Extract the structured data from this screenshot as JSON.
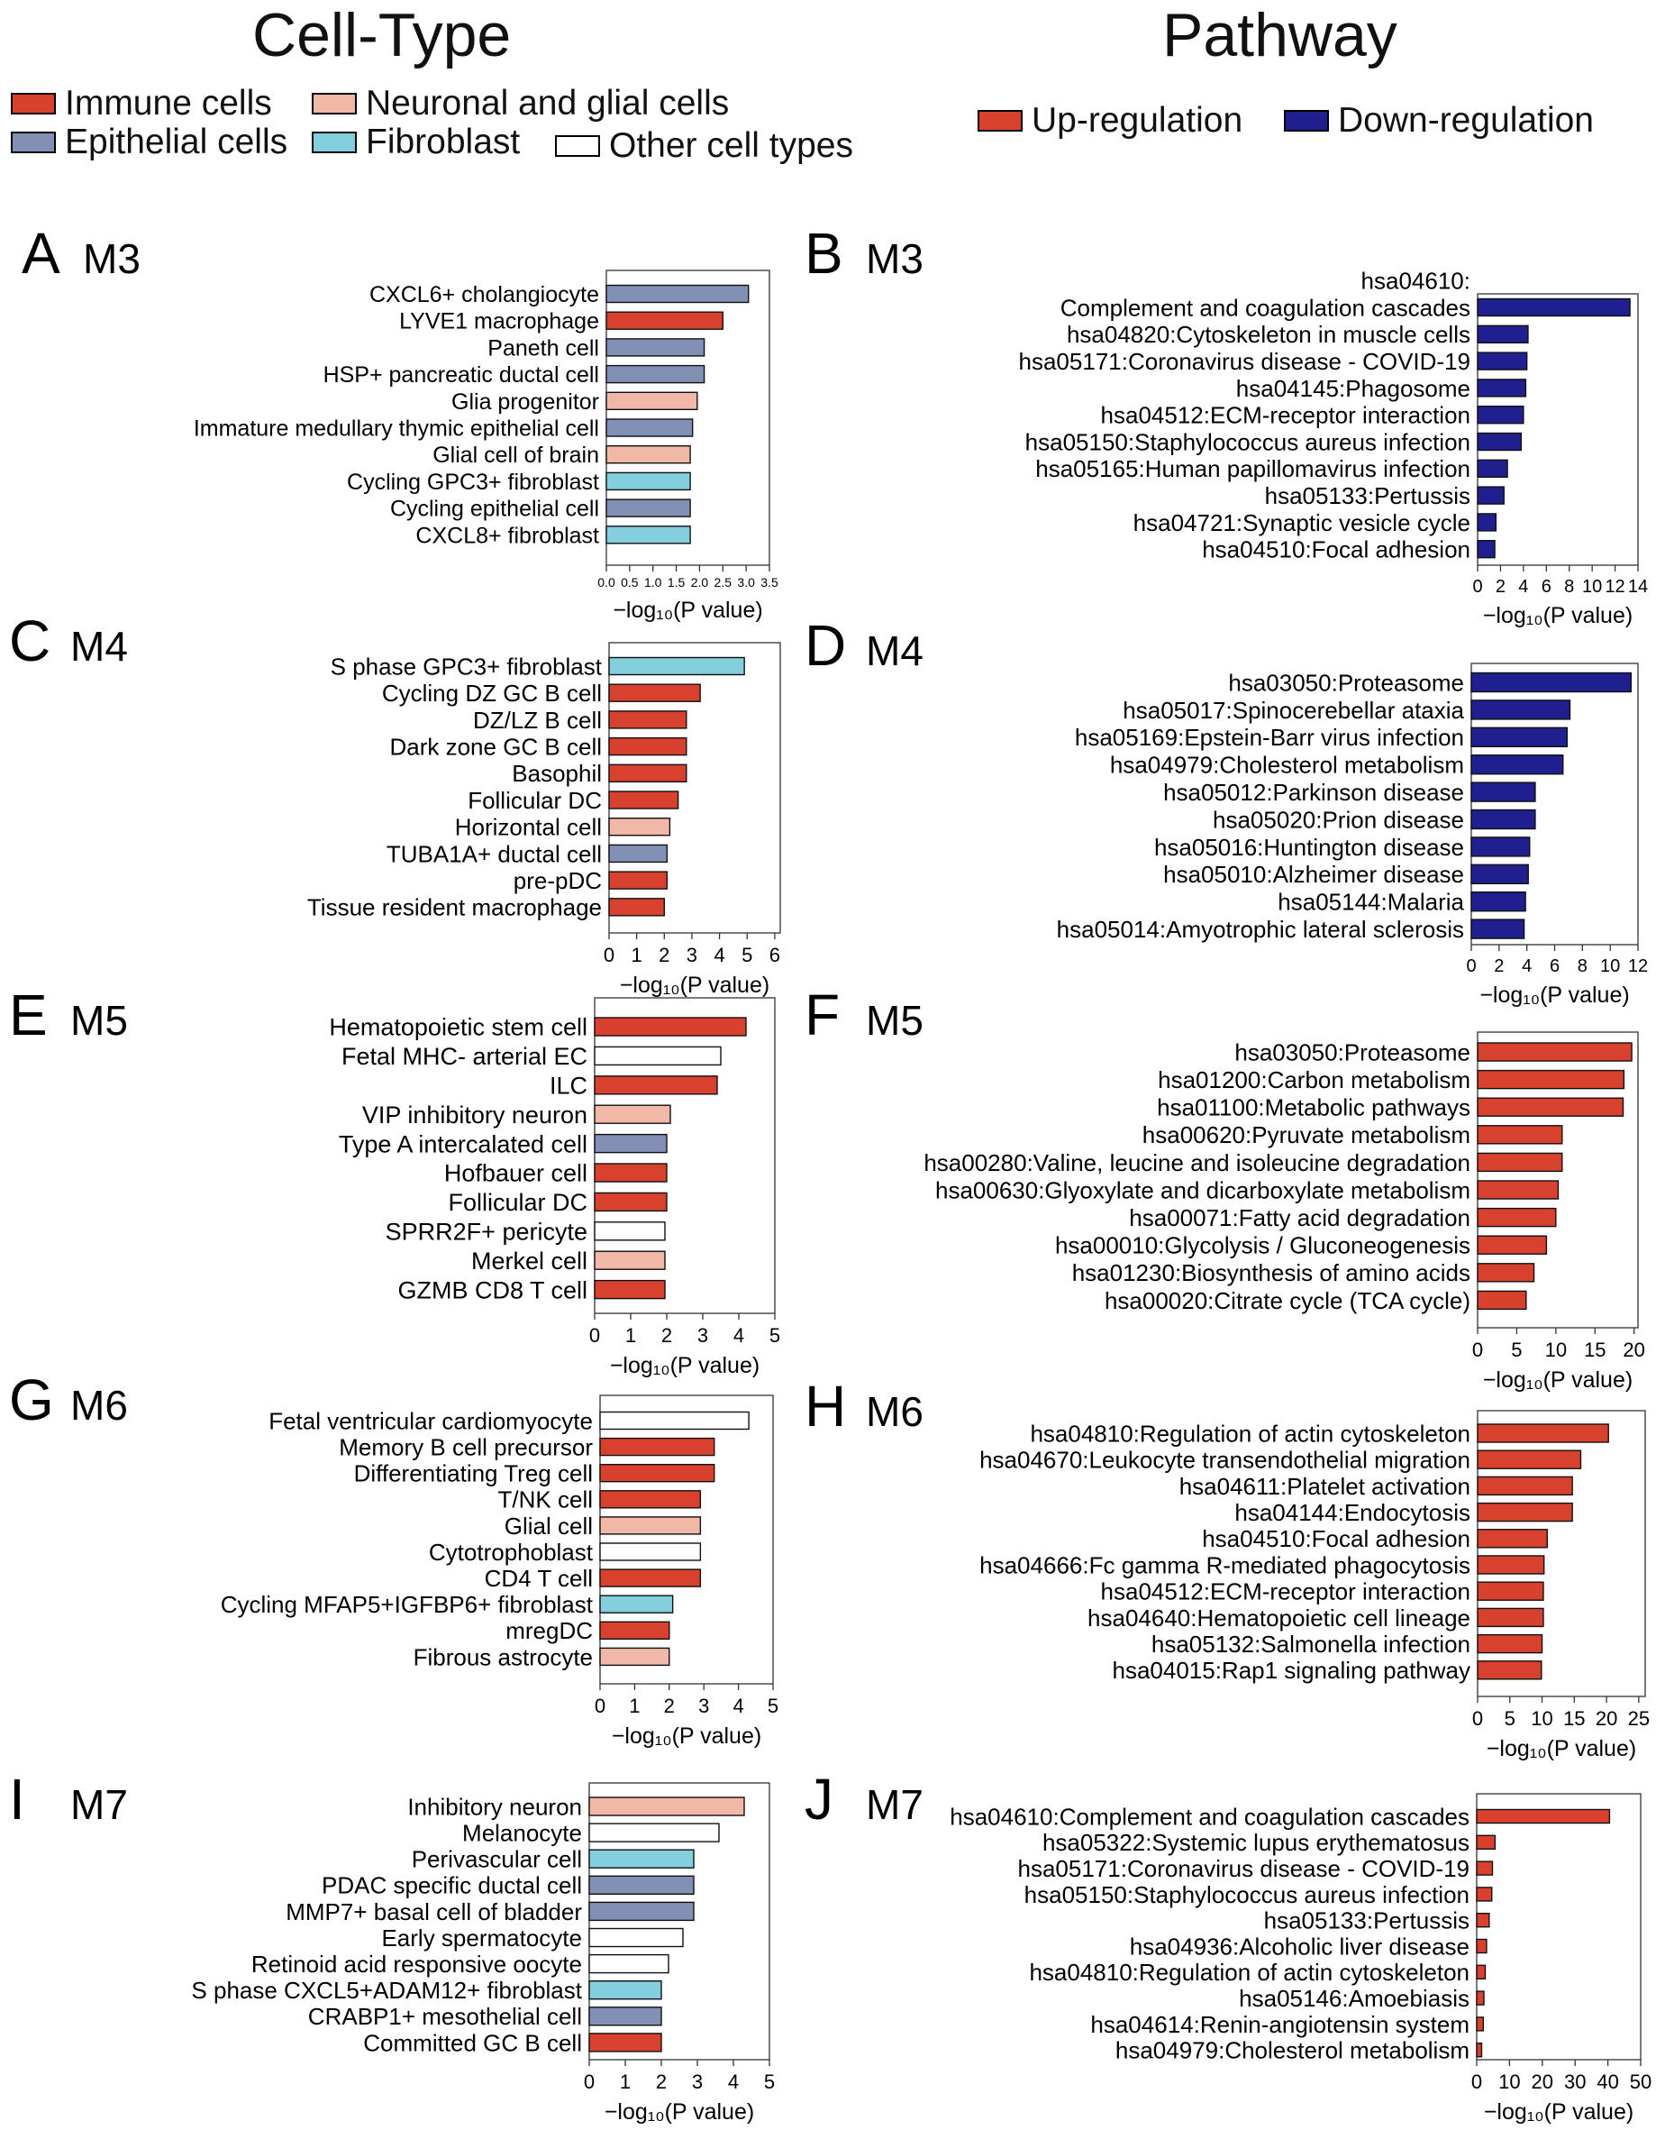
{
  "headers": {
    "left": "Cell-Type",
    "right": "Pathway"
  },
  "cell_legend": [
    {
      "label": "Immune cells",
      "color": "#d9412f"
    },
    {
      "label": "Neuronal and glial cells",
      "color": "#f1b8a7"
    },
    {
      "label": "Epithelial cells",
      "color": "#8290b6"
    },
    {
      "label": "Fibroblast",
      "color": "#83cfdd"
    },
    {
      "label": "Other cell types",
      "color": "#ffffff"
    }
  ],
  "pathway_legend": [
    {
      "label": "Up-regulation",
      "color": "#d9412f"
    },
    {
      "label": "Down-regulation",
      "color": "#1f1f8f"
    }
  ],
  "xlabel": "−log₁₀(P value)",
  "chart_data": [
    {
      "panel": "A",
      "module": "M3",
      "type": "bar",
      "orientation": "horizontal",
      "categories": [
        "CXCL6+ cholangiocyte",
        "LYVE1 macrophage",
        "Paneth cell",
        "HSP+ pancreatic ductal cell",
        "Glia progenitor",
        "Immature medullary thymic epithelial cell",
        "Glial cell of brain",
        "Cycling GPC3+ fibroblast",
        "Cycling epithelial cell",
        "CXCL8+ fibroblast"
      ],
      "values": [
        3.05,
        2.5,
        2.1,
        2.1,
        1.95,
        1.85,
        1.8,
        1.8,
        1.8,
        1.8
      ],
      "colors": [
        "#8290b6",
        "#d9412f",
        "#8290b6",
        "#8290b6",
        "#f1b8a7",
        "#8290b6",
        "#f1b8a7",
        "#83cfdd",
        "#8290b6",
        "#83cfdd"
      ],
      "xlim": [
        0,
        3.5
      ],
      "ticks": [
        0,
        0.5,
        1,
        1.5,
        2,
        2.5,
        3,
        3.5
      ],
      "tick_labels": [
        "0.0",
        "0.5",
        "1.0",
        "1.5",
        "2.0",
        "2.5",
        "3.0",
        "3.5"
      ],
      "xlabel": "−log₁₀(P value)"
    },
    {
      "panel": "B",
      "module": "M3",
      "type": "bar",
      "orientation": "horizontal",
      "categories": [
        "hsa04610:\nComplement and coagulation cascades",
        "hsa04820:Cytoskeleton in muscle cells",
        "hsa05171:Coronavirus disease - COVID-19",
        "hsa04145:Phagosome",
        "hsa04512:ECM-receptor interaction",
        "hsa05150:Staphylococcus aureus infection",
        "hsa05165:Human papillomavirus infection",
        "hsa05133:Pertussis",
        "hsa04721:Synaptic vesicle cycle",
        "hsa04510:Focal adhesion"
      ],
      "values": [
        13.3,
        4.4,
        4.3,
        4.2,
        4.0,
        3.8,
        2.6,
        2.3,
        1.6,
        1.5
      ],
      "colors": [
        "#1f1f8f",
        "#1f1f8f",
        "#1f1f8f",
        "#1f1f8f",
        "#1f1f8f",
        "#1f1f8f",
        "#1f1f8f",
        "#1f1f8f",
        "#1f1f8f",
        "#1f1f8f"
      ],
      "xlim": [
        0,
        14
      ],
      "ticks": [
        0,
        2,
        4,
        6,
        8,
        10,
        12,
        14
      ],
      "tick_labels": [
        "0",
        "2",
        "4",
        "6",
        "8",
        "10",
        "12",
        "14"
      ],
      "xlabel": "−log₁₀(P value)"
    },
    {
      "panel": "C",
      "module": "M4",
      "type": "bar",
      "orientation": "horizontal",
      "categories": [
        "S phase GPC3+ fibroblast",
        "Cycling DZ GC B cell",
        "DZ/LZ B cell",
        "Dark zone GC B cell",
        "Basophil",
        "Follicular DC",
        "Horizontal cell",
        "TUBA1A+ ductal cell",
        "pre-pDC",
        "Tissue resident macrophage"
      ],
      "values": [
        4.9,
        3.3,
        2.8,
        2.8,
        2.8,
        2.5,
        2.2,
        2.1,
        2.1,
        2.0
      ],
      "colors": [
        "#83cfdd",
        "#d9412f",
        "#d9412f",
        "#d9412f",
        "#d9412f",
        "#d9412f",
        "#f1b8a7",
        "#8290b6",
        "#d9412f",
        "#d9412f"
      ],
      "xlim": [
        0,
        6.2
      ],
      "ticks": [
        0,
        1,
        2,
        3,
        4,
        5,
        6
      ],
      "tick_labels": [
        "0",
        "1",
        "2",
        "3",
        "4",
        "5",
        "6"
      ],
      "xlabel": "−log₁₀(P value)"
    },
    {
      "panel": "D",
      "module": "M4",
      "type": "bar",
      "orientation": "horizontal",
      "categories": [
        "hsa03050:Proteasome",
        "hsa05017:Spinocerebellar ataxia",
        "hsa05169:Epstein-Barr virus infection",
        "hsa04979:Cholesterol metabolism",
        "hsa05012:Parkinson disease",
        "hsa05020:Prion disease",
        "hsa05016:Huntington disease",
        "hsa05010:Alzheimer disease",
        "hsa05144:Malaria",
        "hsa05014:Amyotrophic lateral sclerosis"
      ],
      "values": [
        11.5,
        7.1,
        6.9,
        6.6,
        4.6,
        4.6,
        4.2,
        4.1,
        3.9,
        3.8
      ],
      "colors": [
        "#1f1f8f",
        "#1f1f8f",
        "#1f1f8f",
        "#1f1f8f",
        "#1f1f8f",
        "#1f1f8f",
        "#1f1f8f",
        "#1f1f8f",
        "#1f1f8f",
        "#1f1f8f"
      ],
      "xlim": [
        0,
        12
      ],
      "ticks": [
        0,
        2,
        4,
        6,
        8,
        10,
        12
      ],
      "tick_labels": [
        "0",
        "2",
        "4",
        "6",
        "8",
        "10",
        "12"
      ],
      "xlabel": "−log₁₀(P value)"
    },
    {
      "panel": "E",
      "module": "M5",
      "type": "bar",
      "orientation": "horizontal",
      "categories": [
        "Hematopoietic stem cell",
        "Fetal MHC- arterial EC",
        "ILC",
        "VIP inhibitory neuron",
        "Type A intercalated cell",
        "Hofbauer cell",
        "Follicular DC",
        "SPRR2F+ pericyte",
        "Merkel cell",
        "GZMB CD8 T cell"
      ],
      "values": [
        4.2,
        3.5,
        3.4,
        2.1,
        2.0,
        2.0,
        2.0,
        1.95,
        1.95,
        1.95
      ],
      "colors": [
        "#d9412f",
        "#ffffff",
        "#d9412f",
        "#f1b8a7",
        "#8290b6",
        "#d9412f",
        "#d9412f",
        "#ffffff",
        "#f1b8a7",
        "#d9412f"
      ],
      "xlim": [
        0,
        5
      ],
      "ticks": [
        0,
        1,
        2,
        3,
        4,
        5
      ],
      "tick_labels": [
        "0",
        "1",
        "2",
        "3",
        "4",
        "5"
      ],
      "xlabel": "−log₁₀(P value)"
    },
    {
      "panel": "F",
      "module": "M5",
      "type": "bar",
      "orientation": "horizontal",
      "categories": [
        "hsa03050:Proteasome",
        "hsa01200:Carbon metabolism",
        "hsa01100:Metabolic pathways",
        "hsa00620:Pyruvate metabolism",
        "hsa00280:Valine, leucine and isoleucine degradation",
        "hsa00630:Glyoxylate and dicarboxylate metabolism",
        "hsa00071:Fatty acid degradation",
        "hsa00010:Glycolysis / Gluconeogenesis",
        "hsa01230:Biosynthesis of amino acids",
        "hsa00020:Citrate cycle (TCA cycle)"
      ],
      "values": [
        19.7,
        18.7,
        18.6,
        10.8,
        10.8,
        10.3,
        10.0,
        8.8,
        7.2,
        6.2
      ],
      "colors": [
        "#d9412f",
        "#d9412f",
        "#d9412f",
        "#d9412f",
        "#d9412f",
        "#d9412f",
        "#d9412f",
        "#d9412f",
        "#d9412f",
        "#d9412f"
      ],
      "xlim": [
        0,
        20.5
      ],
      "ticks": [
        0,
        5,
        10,
        15,
        20
      ],
      "tick_labels": [
        "0",
        "5",
        "10",
        "15",
        "20"
      ],
      "xlabel": "−log₁₀(P value)"
    },
    {
      "panel": "G",
      "module": "M6",
      "type": "bar",
      "orientation": "horizontal",
      "categories": [
        "Fetal ventricular cardiomyocyte",
        "Memory B cell precursor",
        "Differentiating Treg cell",
        "T/NK cell",
        "Glial cell",
        "Cytotrophoblast",
        "CD4 T cell",
        "Cycling MFAP5+IGFBP6+ fibroblast",
        "mregDC",
        "Fibrous astrocyte"
      ],
      "values": [
        4.3,
        3.3,
        3.3,
        2.9,
        2.9,
        2.9,
        2.9,
        2.1,
        2.0,
        2.0
      ],
      "colors": [
        "#ffffff",
        "#d9412f",
        "#d9412f",
        "#d9412f",
        "#f1b8a7",
        "#ffffff",
        "#d9412f",
        "#83cfdd",
        "#d9412f",
        "#f1b8a7"
      ],
      "xlim": [
        0,
        5
      ],
      "ticks": [
        0,
        1,
        2,
        3,
        4,
        5
      ],
      "tick_labels": [
        "0",
        "1",
        "2",
        "3",
        "4",
        "5"
      ],
      "xlabel": "−log₁₀(P value)"
    },
    {
      "panel": "H",
      "module": "M6",
      "type": "bar",
      "orientation": "horizontal",
      "categories": [
        "hsa04810:Regulation of actin cytoskeleton",
        "hsa04670:Leukocyte transendothelial migration",
        "hsa04611:Platelet activation",
        "hsa04144:Endocytosis",
        "hsa04510:Focal adhesion",
        "hsa04666:Fc gamma R-mediated phagocytosis",
        "hsa04512:ECM-receptor interaction",
        "hsa04640:Hematopoietic cell lineage",
        "hsa05132:Salmonella infection",
        "hsa04015:Rap1 signaling pathway"
      ],
      "values": [
        20.3,
        16.0,
        14.7,
        14.7,
        10.8,
        10.3,
        10.2,
        10.2,
        10.0,
        9.9
      ],
      "colors": [
        "#d9412f",
        "#d9412f",
        "#d9412f",
        "#d9412f",
        "#d9412f",
        "#d9412f",
        "#d9412f",
        "#d9412f",
        "#d9412f",
        "#d9412f"
      ],
      "xlim": [
        0,
        26
      ],
      "ticks": [
        0,
        5,
        10,
        15,
        20,
        25
      ],
      "tick_labels": [
        "0",
        "5",
        "10",
        "15",
        "20",
        "25"
      ],
      "xlabel": "−log₁₀(P value)"
    },
    {
      "panel": "I",
      "module": "M7",
      "type": "bar",
      "orientation": "horizontal",
      "categories": [
        "Inhibitory neuron",
        "Melanocyte",
        "Perivascular cell",
        "PDAC specific ductal cell",
        "MMP7+ basal cell of bladder",
        "Early spermatocyte",
        "Retinoid acid responsive oocyte",
        "S phase CXCL5+ADAM12+ fibroblast",
        "CRABP1+ mesothelial cell",
        "Committed GC B cell"
      ],
      "values": [
        4.3,
        3.6,
        2.9,
        2.9,
        2.9,
        2.6,
        2.2,
        2.0,
        2.0,
        2.0
      ],
      "colors": [
        "#f1b8a7",
        "#ffffff",
        "#83cfdd",
        "#8290b6",
        "#8290b6",
        "#ffffff",
        "#ffffff",
        "#83cfdd",
        "#8290b6",
        "#d9412f"
      ],
      "xlim": [
        0,
        5
      ],
      "ticks": [
        0,
        1,
        2,
        3,
        4,
        5
      ],
      "tick_labels": [
        "0",
        "1",
        "2",
        "3",
        "4",
        "5"
      ],
      "xlabel": "−log₁₀(P value)"
    },
    {
      "panel": "J",
      "module": "M7",
      "type": "bar",
      "orientation": "horizontal",
      "categories": [
        "hsa04610:Complement and coagulation cascades",
        "hsa05322:Systemic lupus erythematosus",
        "hsa05171:Coronavirus disease - COVID-19",
        "hsa05150:Staphylococcus aureus infection",
        "hsa05133:Pertussis",
        "hsa04936:Alcoholic liver disease",
        "hsa04810:Regulation of actin cytoskeleton",
        "hsa05146:Amoebiasis",
        "hsa04614:Renin-angiotensin system",
        "hsa04979:Cholesterol metabolism"
      ],
      "values": [
        40.5,
        5.6,
        4.8,
        4.6,
        3.8,
        3.0,
        2.6,
        2.2,
        2.0,
        1.5
      ],
      "colors": [
        "#d9412f",
        "#d9412f",
        "#d9412f",
        "#d9412f",
        "#d9412f",
        "#d9412f",
        "#d9412f",
        "#d9412f",
        "#d9412f",
        "#d9412f"
      ],
      "xlim": [
        0,
        50
      ],
      "ticks": [
        0,
        10,
        20,
        30,
        40,
        50
      ],
      "tick_labels": [
        "0",
        "10",
        "20",
        "30",
        "40",
        "50"
      ],
      "xlabel": "−log₁₀(P value)"
    }
  ]
}
